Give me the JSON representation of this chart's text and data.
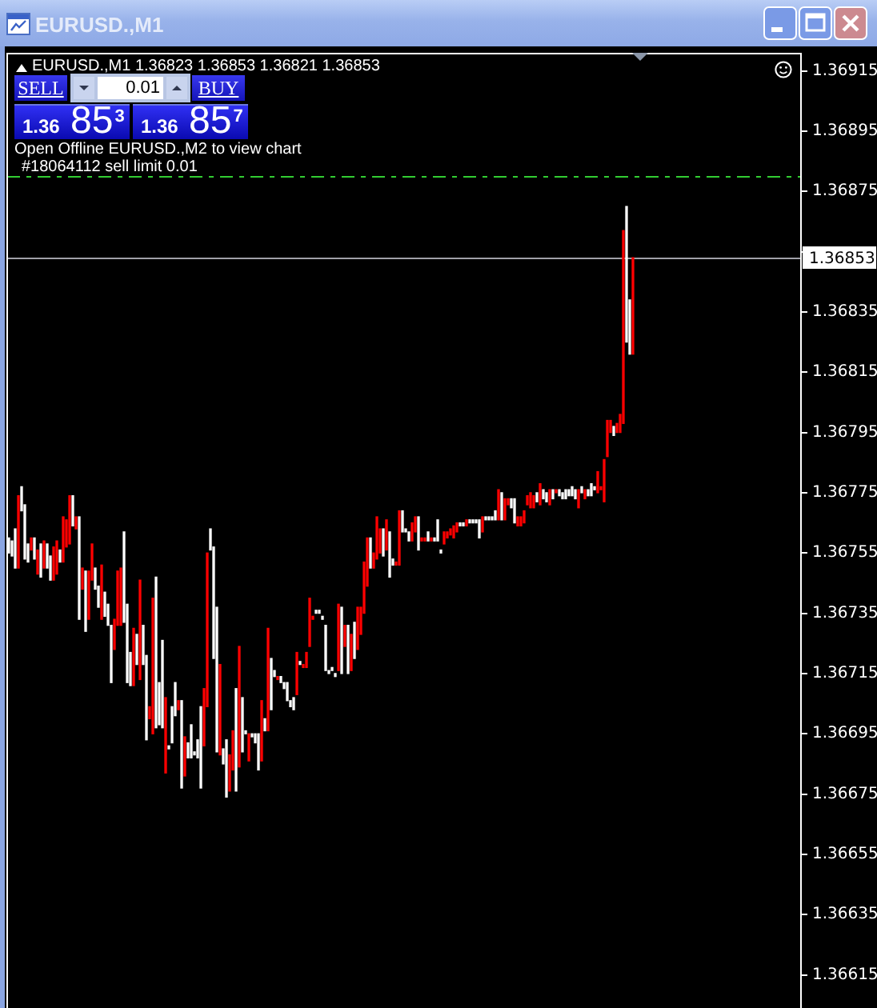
{
  "chart_data": {
    "type": "bar",
    "title": "EURUSD.,M1",
    "subtitle": "EURUSD.,M1 1.36823 1.36853 1.36821 1.36853",
    "categories": [
      null,
      null,
      null,
      null,
      null,
      null,
      null,
      null,
      null,
      null,
      null,
      null,
      null,
      null,
      null,
      null,
      null,
      null,
      null,
      null,
      null,
      null,
      null,
      null,
      null,
      null,
      null,
      null,
      null,
      null,
      null,
      null,
      null,
      null,
      null,
      null,
      null,
      null,
      null,
      null,
      null,
      null,
      null,
      null,
      null,
      null,
      null,
      null,
      null,
      null,
      null,
      null,
      null,
      null,
      null,
      null,
      null,
      null,
      null,
      null,
      null,
      null,
      null,
      null,
      null,
      null,
      null,
      null,
      null,
      null,
      null,
      null,
      null,
      null,
      null,
      null,
      null,
      null,
      null,
      null,
      null,
      null,
      null,
      null,
      null,
      null,
      null,
      null,
      null,
      null,
      null,
      null,
      null,
      null,
      null,
      null,
      null,
      null,
      null,
      null,
      null,
      null,
      null,
      null,
      null,
      null,
      null,
      null,
      null,
      null,
      null,
      null,
      null,
      null,
      null,
      null,
      null,
      null,
      null,
      null,
      null,
      null,
      null,
      null,
      null,
      null,
      null,
      null,
      null,
      null,
      null,
      null,
      null,
      null,
      null,
      null,
      null,
      null,
      null,
      null,
      null,
      null,
      null,
      null,
      null,
      null,
      null,
      null,
      null,
      null,
      null,
      null,
      null,
      null,
      null,
      null,
      null,
      null,
      null,
      null,
      null,
      null,
      null,
      null,
      null,
      null,
      null,
      null,
      null,
      null,
      null,
      null,
      null,
      null,
      null,
      null,
      null,
      null,
      null,
      null,
      null,
      null,
      null,
      null,
      null,
      null,
      null,
      null,
      null,
      null,
      null,
      null,
      null,
      null,
      null,
      null,
      null,
      null,
      null,
      null,
      null,
      null,
      null,
      null,
      null,
      null,
      null,
      null,
      null,
      null,
      null,
      null,
      null,
      null,
      null,
      null,
      null,
      null,
      null,
      null,
      null,
      null,
      null,
      null,
      null,
      null,
      null,
      null,
      null,
      null,
      null,
      null,
      null,
      null,
      null,
      null,
      null,
      null,
      null,
      null,
      null,
      null,
      null,
      null,
      null,
      null,
      null,
      null
    ],
    "base": [
      1.36755,
      1.36754,
      1.3675,
      1.3675,
      1.36769,
      1.36753,
      1.36752,
      1.36756,
      1.36753,
      1.36748,
      1.36747,
      1.3675,
      1.3675,
      1.36746,
      1.36746,
      1.36748,
      1.36752,
      1.36752,
      1.36757,
      1.36758,
      1.36764,
      1.36763,
      1.36733,
      1.36743,
      1.36729,
      1.36733,
      1.36746,
      1.36743,
      1.36737,
      1.36733,
      1.36734,
      1.36731,
      1.36712,
      1.36723,
      1.36731,
      1.36731,
      1.36732,
      1.36712,
      1.36711,
      1.36711,
      1.36718,
      1.36713,
      1.36718,
      1.36693,
      1.367,
      1.36695,
      1.36697,
      1.36698,
      1.36697,
      1.36682,
      1.3669,
      1.36692,
      1.36701,
      1.36703,
      1.36677,
      1.36681,
      1.36687,
      1.36687,
      1.36688,
      1.36687,
      1.36677,
      1.36691,
      1.36704,
      1.36756,
      1.3672,
      1.36689,
      1.36688,
      1.36685,
      1.36674,
      1.36676,
      1.36683,
      1.36676,
      1.36684,
      1.36689,
      1.36695,
      1.36686,
      1.36694,
      1.36692,
      1.36683,
      1.36686,
      1.36696,
      1.36696,
      1.36703,
      1.36714,
      1.36713,
      1.36712,
      1.3671,
      1.36706,
      1.36704,
      1.36703,
      1.36708,
      1.36718,
      1.36717,
      1.36717,
      1.36724,
      1.36733,
      1.36735,
      1.36735,
      1.36733,
      1.36716,
      1.36715,
      1.36716,
      1.36714,
      1.36716,
      1.36715,
      1.36724,
      1.36715,
      1.36716,
      1.3672,
      1.36723,
      1.36728,
      1.36735,
      1.36744,
      1.3675,
      1.3675,
      1.36753,
      1.36755,
      1.36754,
      1.36756,
      1.36747,
      1.36751,
      1.36751,
      1.36751,
      1.36762,
      1.36762,
      1.36759,
      1.36759,
      1.36762,
      1.36756,
      1.36759,
      1.36759,
      1.36759,
      1.36759,
      1.36759,
      1.36759,
      1.36755,
      1.36758,
      1.3676,
      1.36761,
      1.3676,
      1.36762,
      1.36764,
      1.36764,
      1.36764,
      1.36765,
      1.36765,
      1.36765,
      1.3676,
      1.36762,
      1.36766,
      1.36766,
      1.36766,
      1.36766,
      1.36766,
      1.36766,
      1.36766,
      1.36771,
      1.3677,
      1.36765,
      1.36764,
      1.36764,
      1.36765,
      1.36771,
      1.3677,
      1.3677,
      1.36772,
      1.36771,
      1.36773,
      1.36772,
      1.36771,
      1.36773,
      1.36775,
      1.36774,
      1.36773,
      1.36773,
      1.36774,
      1.36774,
      1.36773,
      1.3677,
      1.36775,
      1.36773,
      1.36774,
      1.36774,
      1.36776,
      1.36775,
      1.36776,
      1.36772,
      1.36787,
      1.36795,
      1.36794,
      1.36795,
      1.36795,
      1.36798,
      1.36825,
      1.36821,
      1.36821,
      null,
      null,
      null,
      null,
      null,
      null,
      null,
      null,
      null,
      null,
      null,
      null,
      null,
      null,
      null,
      null,
      null,
      null,
      null,
      null,
      null,
      null,
      null,
      null,
      null,
      null,
      null,
      null,
      null,
      null,
      null,
      null,
      null,
      null,
      null,
      null,
      null,
      null,
      null,
      null,
      null,
      null,
      null,
      null,
      null,
      null,
      null,
      null,
      null,
      null,
      null,
      null
    ],
    "values": [
      5e-05,
      5e-05,
      0.00013,
      0.00024,
      8e-05,
      0.00018,
      6e-05,
      4e-05,
      7e-05,
      8e-05,
      0.00011,
      9e-05,
      8e-05,
      8e-05,
      0.00011,
      0.00011,
      4e-05,
      0.00015,
      9e-05,
      0.00016,
      0.0001,
      4e-05,
      0.00034,
      7e-05,
      0.0002,
      0.00016,
      0.00012,
      7e-05,
      7e-05,
      0.00018,
      8e-05,
      7e-05,
      0.00019,
      0.0001,
      0.00018,
      0.00019,
      0.0003,
      0.00026,
      0.00011,
      0.00019,
      0.0001,
      0.00033,
      0.00013,
      0.00028,
      4e-05,
      0.00045,
      0.0005,
      0.00014,
      0.00029,
      0.00025,
      1e-05,
      0.00012,
      0.00011,
      3e-05,
      0.00029,
      0.00013,
      5e-05,
      0.00011,
      1e-05,
      6e-05,
      0.00027,
      0.00019,
      0.00051,
      7e-05,
      0.00037,
      0.00048,
      0.0003,
      5e-05,
      0.00019,
      0.00012,
      0.00013,
      0.00034,
      0.0004,
      0.00018,
      1e-05,
      9e-05,
      1e-05,
      3e-05,
      0.00012,
      0.0002,
      4e-05,
      0.00034,
      0.00017,
      2e-05,
      1e-05,
      2e-05,
      2e-05,
      6e-05,
      2e-05,
      4e-05,
      0.00014,
      1e-05,
      1e-05,
      5e-05,
      0.00016,
      1e-05,
      1e-05,
      1e-05,
      1e-05,
      0.00015,
      1e-05,
      1e-05,
      1e-05,
      0.00022,
      0.00022,
      7e-05,
      0.00016,
      0.00012,
      0.00012,
      0.00014,
      9e-05,
      0.00017,
      0.00016,
      0.0001,
      5e-05,
      0.00014,
      8e-05,
      9e-05,
      0.0001,
      0.00015,
      2e-05,
      1e-05,
      0.00018,
      7e-05,
      1e-05,
      3e-05,
      6e-05,
      5e-05,
      0.00011,
      1e-05,
      1e-05,
      3e-05,
      1e-05,
      1e-05,
      7e-05,
      1e-05,
      4e-05,
      2e-05,
      2e-05,
      4e-05,
      3e-05,
      1e-05,
      1e-05,
      2e-05,
      1e-05,
      1e-05,
      1e-05,
      6e-05,
      5e-05,
      1e-05,
      1e-05,
      1e-05,
      3e-05,
      0.0001,
      9e-05,
      7e-05,
      2e-05,
      3e-05,
      8e-05,
      3e-05,
      3e-05,
      4e-05,
      3e-05,
      5e-05,
      4e-05,
      3e-05,
      7e-05,
      3e-05,
      3e-05,
      5e-05,
      3e-05,
      1e-05,
      2e-05,
      2e-05,
      3e-05,
      2e-05,
      3e-05,
      3e-05,
      6e-05,
      2e-05,
      3e-05,
      2e-05,
      4e-05,
      1e-05,
      7e-05,
      1e-05,
      0.00014,
      0.00012,
      4e-05,
      3e-05,
      3e-05,
      6e-05,
      0.00064,
      0.00045,
      0.00018,
      0.00032,
      null,
      null,
      null,
      null,
      null,
      null,
      null,
      null,
      null,
      null,
      null,
      null,
      null,
      null,
      null,
      null,
      null,
      null,
      null,
      null,
      null,
      null,
      null,
      null,
      null,
      null,
      null,
      null,
      null,
      null,
      null,
      null,
      null,
      null,
      null,
      null,
      null,
      null,
      null,
      null,
      null,
      null,
      null,
      null,
      null,
      null,
      null,
      null,
      null,
      null,
      null,
      null
    ],
    "colors": [
      "#ffffff",
      "#ffffff",
      "#ffffff",
      "#ff0000",
      "#ffffff",
      "#ffffff",
      "#ffffff",
      "#ff0000",
      "#ffffff",
      "#ff0000",
      "#ffffff",
      "#ff0000",
      "#ffffff",
      "#ffffff",
      "#ff0000",
      "#ff0000",
      "#ffffff",
      "#ff0000",
      "#ff0000",
      "#ff0000",
      "#ffffff",
      "#ff0000",
      "#ffffff",
      "#ff0000",
      "#ffffff",
      "#ff0000",
      "#ff0000",
      "#ffffff",
      "#ffffff",
      "#ff0000",
      "#ffffff",
      "#ffffff",
      "#ffffff",
      "#ff0000",
      "#ff0000",
      "#ff0000",
      "#ffffff",
      "#ffffff",
      "#ffffff",
      "#ff0000",
      "#ffffff",
      "#ff0000",
      "#ffffff",
      "#ffffff",
      "#ff0000",
      "#ff0000",
      "#ffffff",
      "#ffffff",
      "#ffffff",
      "#ff0000",
      "#ffffff",
      "#ffffff",
      "#ffffff",
      "#ff0000",
      "#ffffff",
      "#ff0000",
      "#ffffff",
      "#ffffff",
      "#ffffff",
      "#ffffff",
      "#ffffff",
      "#ff0000",
      "#ff0000",
      "#ffffff",
      "#ffffff",
      "#ffffff",
      "#ff0000",
      "#ffffff",
      "#ffffff",
      "#ff0000",
      "#ff0000",
      "#ffffff",
      "#ff0000",
      "#ffffff",
      "#ffffff",
      "#ff0000",
      "#ffffff",
      "#ffffff",
      "#ffffff",
      "#ff0000",
      "#ffffff",
      "#ff0000",
      "#ffffff",
      "#ffffff",
      "#ff0000",
      "#ffffff",
      "#ffffff",
      "#ffffff",
      "#ffffff",
      "#ffffff",
      "#ff0000",
      "#ffffff",
      "#ff0000",
      "#ff0000",
      "#ff0000",
      "#ff0000",
      "#ffffff",
      "#ffffff",
      "#ffffff",
      "#ffffff",
      "#ffffff",
      "#ffffff",
      "#ffffff",
      "#ff0000",
      "#ffffff",
      "#ff0000",
      "#ffffff",
      "#ff0000",
      "#ffffff",
      "#ff0000",
      "#ff0000",
      "#ff0000",
      "#ff0000",
      "#ffffff",
      "#ff0000",
      "#ff0000",
      "#ff0000",
      "#ffffff",
      "#ff0000",
      "#ffffff",
      "#ffffff",
      "#ff0000",
      "#ff0000",
      "#ffffff",
      "#ffffff",
      "#ffffff",
      "#ff0000",
      "#ff0000",
      "#ffffff",
      "#ff0000",
      "#ff0000",
      "#ffffff",
      "#ff0000",
      "#ffffff",
      "#ffffff",
      "#ffffff",
      "#ff0000",
      "#ff0000",
      "#ff0000",
      "#ff0000",
      "#ff0000",
      "#ffffff",
      "#ffffff",
      "#ff0000",
      "#ffffff",
      "#ffffff",
      "#ffffff",
      "#ffffff",
      "#ff0000",
      "#ffffff",
      "#ffffff",
      "#ffffff",
      "#ffffff",
      "#ff0000",
      "#ffffff",
      "#ff0000",
      "#ff0000",
      "#ffffff",
      "#ffffff",
      "#ff0000",
      "#ff0000",
      "#ff0000",
      "#ff0000",
      "#ff0000",
      "#ff0000",
      "#ffffff",
      "#ff0000",
      "#ffffff",
      "#ffffff",
      "#ff0000",
      "#ffffff",
      "#ff0000",
      "#ffffff",
      "#ffffff",
      "#ffffff",
      "#ffffff",
      "#ffffff",
      "#ffffff",
      "#ff0000",
      "#ffffff",
      "#ff0000",
      "#ffffff",
      "#ffffff",
      "#ffffff",
      "#ff0000",
      "#ff0000",
      "#ff0000",
      "#ff0000",
      "#ff0000",
      "#ffffff",
      "#ff0000",
      "#ff0000",
      "#ff0000",
      "#ffffff",
      "#ffffff",
      "#ff0000",
      null,
      null,
      null,
      null,
      null,
      null,
      null,
      null,
      null,
      null,
      null,
      null,
      null,
      null,
      null,
      null,
      null,
      null,
      null,
      null,
      null,
      null,
      null,
      null,
      null,
      null,
      null,
      null,
      null,
      null,
      null,
      null,
      null,
      null,
      null,
      null,
      null,
      null,
      null,
      null,
      null,
      null,
      null,
      null,
      null,
      null,
      null,
      null,
      null,
      null,
      null,
      null
    ],
    "ylim": [
      1.36604,
      1.36921
    ],
    "yticks": [
      1.36615,
      1.36635,
      1.36655,
      1.36675,
      1.36695,
      1.36715,
      1.36735,
      1.36755,
      1.36775,
      1.36795,
      1.36815,
      1.36835,
      {
        "value": 1.36855,
        "label": null
      },
      1.36875,
      1.36895,
      1.36915
    ],
    "tick_labels": "y",
    "ref_lines": [
      {
        "axis": "y",
        "value": 1.36853,
        "label": "1.36853",
        "color": "#a0a0a8"
      },
      {
        "axis": "y",
        "value": 1.3688,
        "label": "#18064112 sell limit 0.01",
        "color": "#32cd32",
        "line_style": "dashed"
      }
    ],
    "annotations": [
      "SELL",
      "0.01",
      "BUY",
      "1.36 85$^{3}$",
      "1.36 85$^{7}$",
      "Open Offline EURUSD.,M2 to view chart"
    ]
  }
}
